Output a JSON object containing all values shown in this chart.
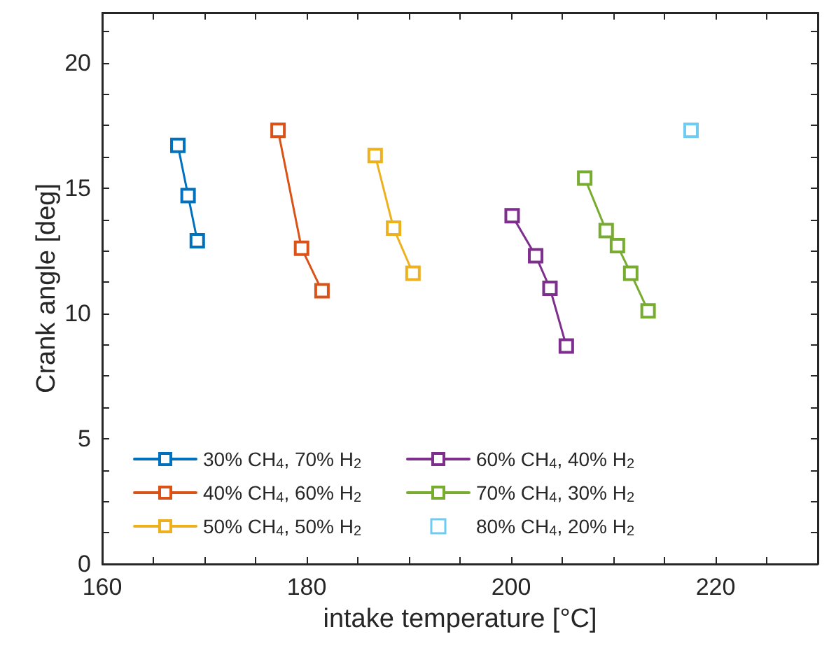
{
  "chart_data": {
    "type": "line",
    "xlabel": "intake temperature [°C]",
    "ylabel": "Crank angle [deg]",
    "xlim": [
      160,
      230
    ],
    "xticks": [
      160,
      {
        "value": 165,
        "label": null
      },
      {
        "value": 170,
        "label": null
      },
      {
        "value": 175,
        "label": null
      },
      180,
      {
        "value": 185,
        "label": null
      },
      {
        "value": 190,
        "label": null
      },
      {
        "value": 195,
        "label": null
      },
      200,
      {
        "value": 205,
        "label": null
      },
      {
        "value": 210,
        "label": null
      },
      {
        "value": 215,
        "label": null
      },
      220,
      {
        "value": 225,
        "label": null
      }
    ],
    "ylim": [
      0,
      22
    ],
    "yticks": [
      0,
      {
        "value": 1.25,
        "label": null
      },
      {
        "value": 2.5,
        "label": null
      },
      {
        "value": 3.75,
        "label": null
      },
      5,
      {
        "value": 6.25,
        "label": null
      },
      {
        "value": 7.5,
        "label": null
      },
      {
        "value": 8.75,
        "label": null
      },
      10,
      {
        "value": 11.25,
        "label": null
      },
      {
        "value": 12.5,
        "label": null
      },
      {
        "value": 13.75,
        "label": null
      },
      15,
      {
        "value": 16.25,
        "label": null
      },
      {
        "value": 17.5,
        "label": null
      },
      {
        "value": 18.75,
        "label": null
      },
      20,
      {
        "value": 21.25,
        "label": null
      }
    ],
    "grid": false,
    "legend": "bottom left",
    "marker": "square",
    "line_style": "solid",
    "series": [
      {
        "name": "30% CH$_{4}$, 70% H$_{2}$",
        "color": "#0072bd",
        "x": [
          167.4,
          168.4,
          169.3
        ],
        "values": [
          16.7,
          14.7,
          12.9
        ]
      },
      {
        "name": "40% CH$_{4}$, 60% H$_{2}$",
        "color": "#d95319",
        "x": [
          177.2,
          179.5,
          181.5
        ],
        "values": [
          17.3,
          12.6,
          10.9
        ]
      },
      {
        "name": "50% CH$_{4}$, 50% H$_{2}$",
        "color": "#edb120",
        "x": [
          186.7,
          188.5,
          190.4
        ],
        "values": [
          16.3,
          13.4,
          11.6
        ]
      },
      {
        "name": "60% CH$_{4}$, 40% H$_{2}$",
        "color": "#7e2f8e",
        "x": [
          200.1,
          202.4,
          203.8,
          205.4
        ],
        "values": [
          13.9,
          12.3,
          11.0,
          8.7
        ]
      },
      {
        "name": "70% CH$_{4}$, 30% H$_{2}$",
        "color": "#77ac30",
        "x": [
          207.2,
          209.3,
          210.4,
          211.7,
          213.4
        ],
        "values": [
          15.4,
          13.3,
          12.7,
          11.6,
          10.1
        ]
      },
      {
        "name": "80% CH$_{4}$, 20% H$_{2}$",
        "color": "#4dbeee",
        "type": "scatter",
        "x": [
          217.6
        ],
        "values": [
          17.3
        ]
      }
    ]
  }
}
